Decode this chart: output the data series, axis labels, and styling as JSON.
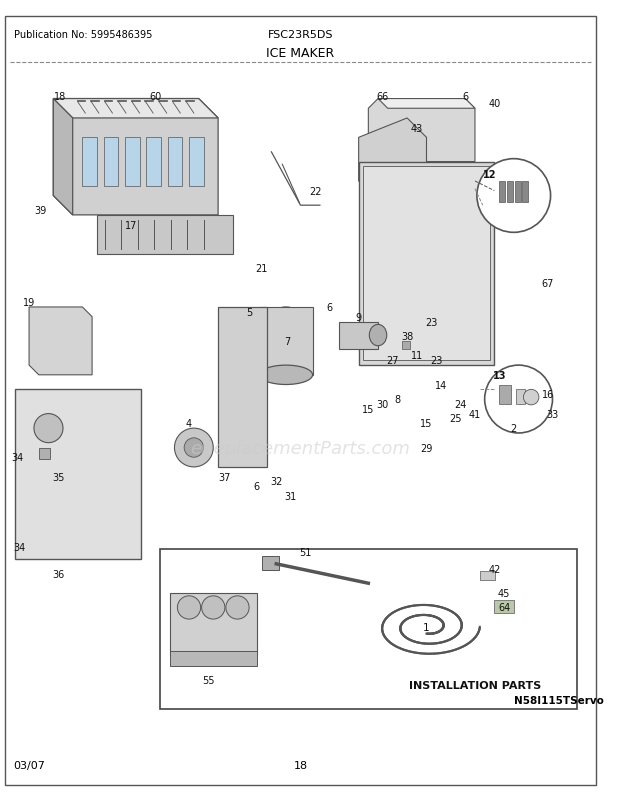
{
  "pub_no": "Publication No: 5995486395",
  "model": "FSC23R5DS",
  "title": "ICE MAKER",
  "footer_left": "03/07",
  "footer_center": "18",
  "diagram_ref": "N58I115TServo",
  "watermark": "eReplacementParts.com",
  "install_label": "INSTALLATION PARTS",
  "bg_color": "#ffffff",
  "border_color": "#000000",
  "text_color": "#000000",
  "diagram_color": "#c8c8c8",
  "fig_width": 6.2,
  "fig_height": 8.03,
  "dpi": 100
}
